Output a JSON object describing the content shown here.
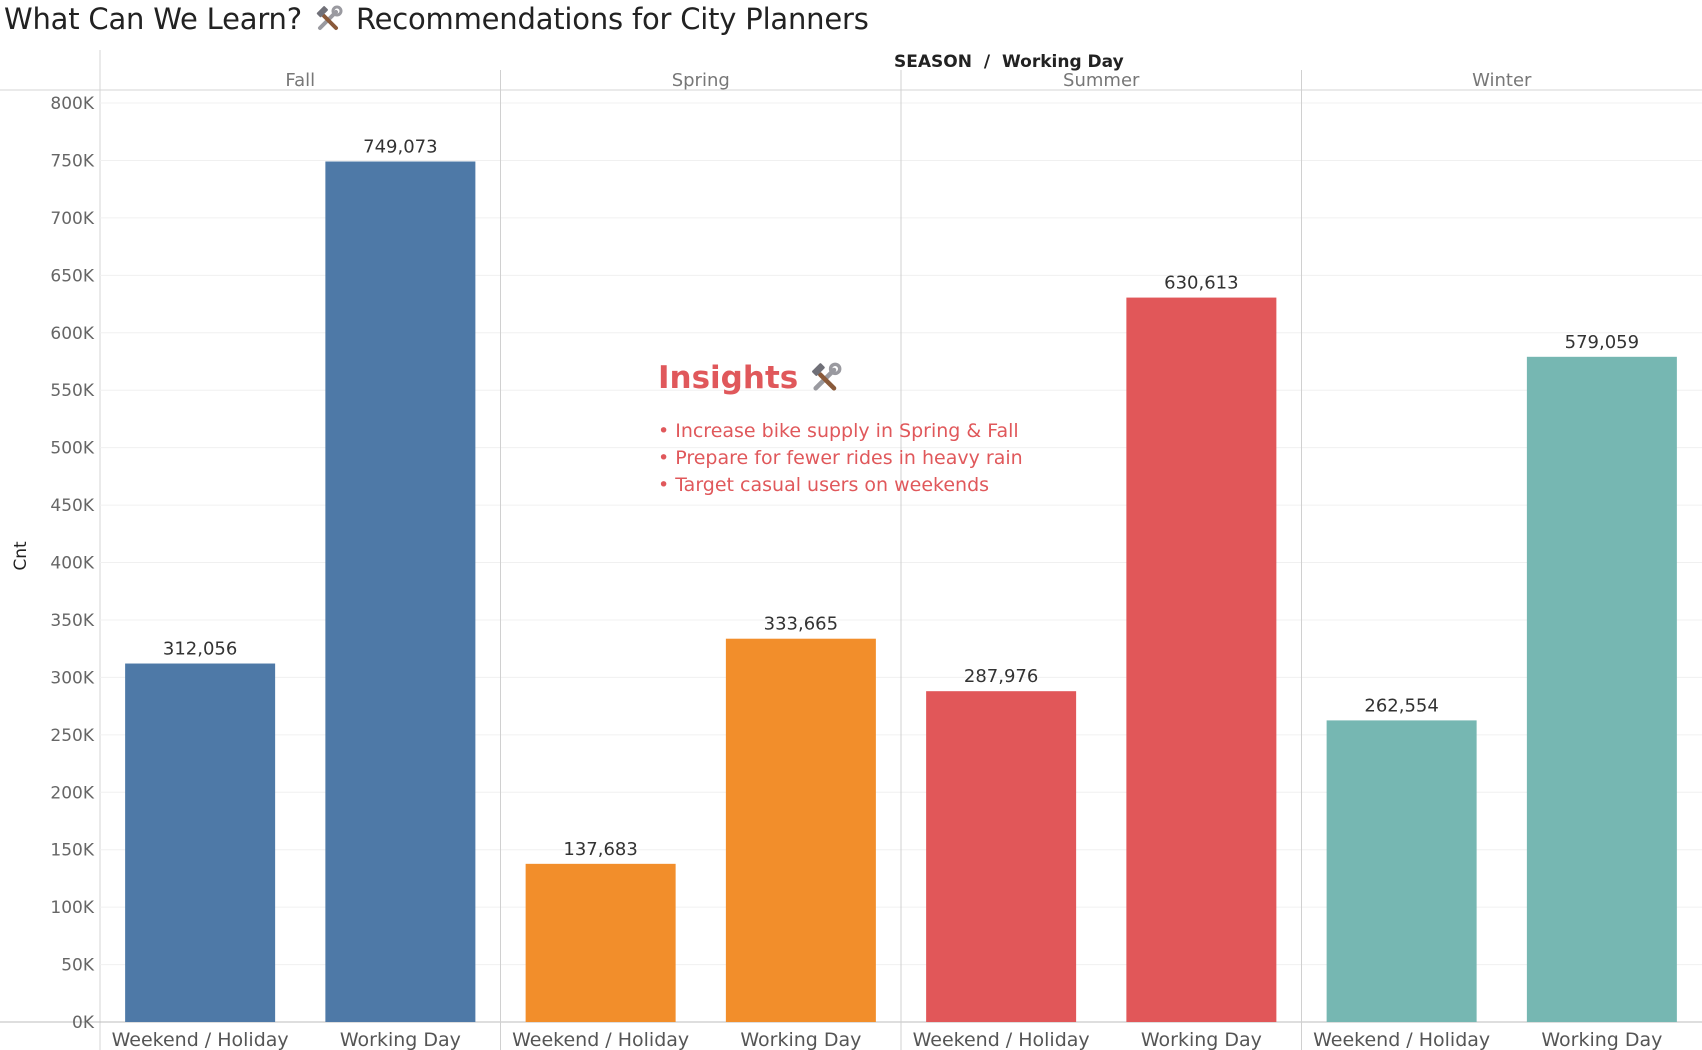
{
  "title": {
    "before_icon": "What Can We Learn?",
    "icon": "hammer-and-wrench-icon",
    "after_icon": "Recommendations for City Planners"
  },
  "header": {
    "dimension_label": "SEASON",
    "separator": "/",
    "sub_dimension_label": "Working Day"
  },
  "insights": {
    "heading": "Insights",
    "icon": "hammer-and-wrench-icon",
    "items": [
      "Increase bike supply in Spring & Fall",
      "Prepare for fewer rides in heavy rain",
      "Target casual users on weekends"
    ],
    "color": "#e0585b"
  },
  "chart_data": {
    "type": "bar",
    "ylabel": "Cnt",
    "ylim": [
      0,
      800000
    ],
    "yticks": [
      "0K",
      "50K",
      "100K",
      "150K",
      "200K",
      "250K",
      "300K",
      "350K",
      "400K",
      "450K",
      "500K",
      "550K",
      "600K",
      "650K",
      "700K",
      "750K",
      "800K"
    ],
    "grid": true,
    "facets": [
      {
        "name": "Fall",
        "color": "#4e79a7",
        "categories": [
          "Weekend / Holiday",
          "Working Day"
        ],
        "values": [
          312056,
          749073
        ],
        "labels": [
          "312,056",
          "749,073"
        ]
      },
      {
        "name": "Spring",
        "color": "#f28e2b",
        "categories": [
          "Weekend / Holiday",
          "Working Day"
        ],
        "values": [
          137683,
          333665
        ],
        "labels": [
          "137,683",
          "333,665"
        ]
      },
      {
        "name": "Summer",
        "color": "#e15759",
        "categories": [
          "Weekend / Holiday",
          "Working Day"
        ],
        "values": [
          287976,
          630613
        ],
        "labels": [
          "287,976",
          "630,613"
        ]
      },
      {
        "name": "Winter",
        "color": "#76b7b2",
        "categories": [
          "Weekend / Holiday",
          "Working Day"
        ],
        "values": [
          262554,
          579059
        ],
        "labels": [
          "262,554",
          "579,059"
        ]
      }
    ]
  }
}
